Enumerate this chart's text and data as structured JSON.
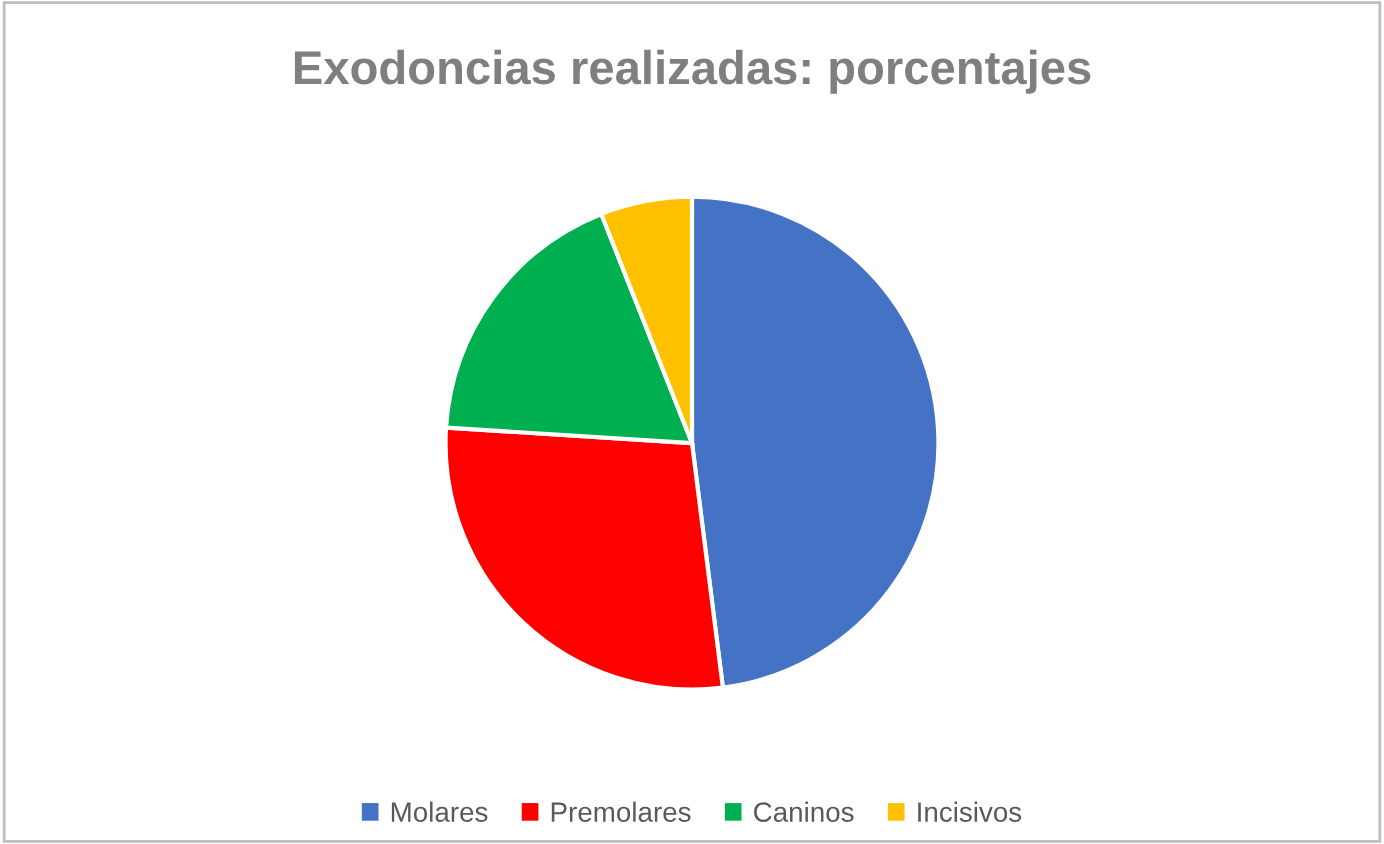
{
  "chart_data": {
    "type": "pie",
    "title": "Exodoncias realizadas: porcentajes",
    "categories": [
      "Molares",
      "Premolares",
      "Caninos",
      "Incisivos"
    ],
    "values": [
      48,
      28,
      18,
      6
    ],
    "colors": [
      "#4472c4",
      "#ff0000",
      "#00b050",
      "#ffc000"
    ],
    "legend": "bottom"
  }
}
